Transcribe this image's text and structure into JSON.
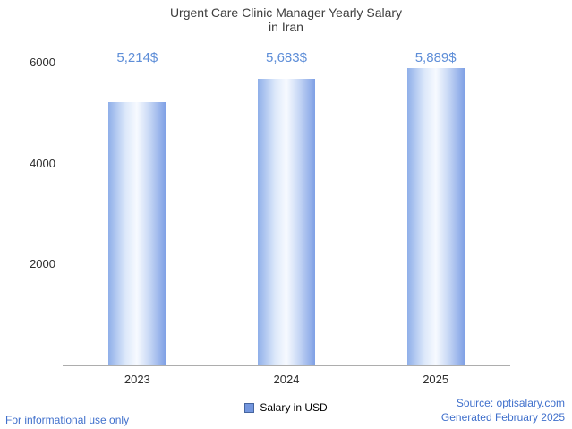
{
  "title": {
    "line1": "Urgent Care Clinic Manager Yearly Salary",
    "line2": "in Iran"
  },
  "chart_data": {
    "type": "bar",
    "title": "Urgent Care Clinic Manager Yearly Salary in Iran",
    "categories": [
      "2023",
      "2024",
      "2025"
    ],
    "values": [
      5214,
      5683,
      5889
    ],
    "value_labels": [
      "5,214$",
      "5,683$",
      "5,889$"
    ],
    "xlabel": "",
    "ylabel": "",
    "ylim": [
      0,
      6000
    ],
    "yticks": [
      2000,
      4000,
      6000
    ],
    "grid": false,
    "legend_position": "bottom",
    "series_name": "Salary in USD"
  },
  "legend": {
    "label": "Salary in USD"
  },
  "footer": {
    "left": "For informational use only",
    "source": "Source: optisalary.com",
    "generated": "Generated February 2025"
  },
  "colors": {
    "value_label": "#5e8ed8",
    "footer_text": "#4070cc",
    "swatch": "#7396de",
    "bar_edge_left": "#8fafe9",
    "bar_light": "#dce8fa",
    "bar_center": "#f7faff",
    "bar_mid": "#c7d7f5",
    "bar_edge_right": "#7fa0e5",
    "axis": "#adadad",
    "title_text": "#3d3d3d"
  }
}
